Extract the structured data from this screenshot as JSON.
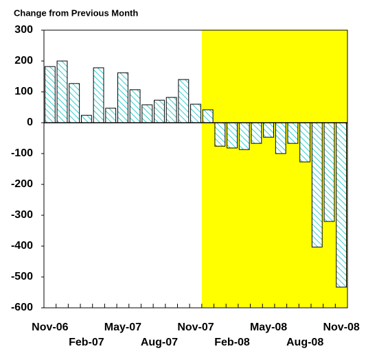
{
  "chart_data": {
    "type": "bar",
    "title": "Change from Previous Month",
    "categories": [
      "Nov-06",
      null,
      null,
      "Feb-07",
      null,
      null,
      "May-07",
      null,
      null,
      "Aug-07",
      null,
      null,
      "Nov-07",
      null,
      null,
      "Feb-08",
      null,
      null,
      "May-08",
      null,
      null,
      "Aug-08",
      null,
      null,
      "Nov-08"
    ],
    "values": [
      182,
      200,
      127,
      24,
      178,
      47,
      162,
      107,
      58,
      73,
      82,
      140,
      60,
      42,
      -76,
      -82,
      -87,
      -67,
      -47,
      -100,
      -67,
      -127,
      -403,
      -320,
      -533
    ],
    "color": "#33cccc",
    "ylim": [
      -600,
      300
    ],
    "yticks": [
      300,
      200,
      100,
      0,
      -100,
      -200,
      -300,
      -400,
      -500,
      -600
    ],
    "shade": {
      "start_index": 13,
      "color": "#ffff00"
    }
  }
}
